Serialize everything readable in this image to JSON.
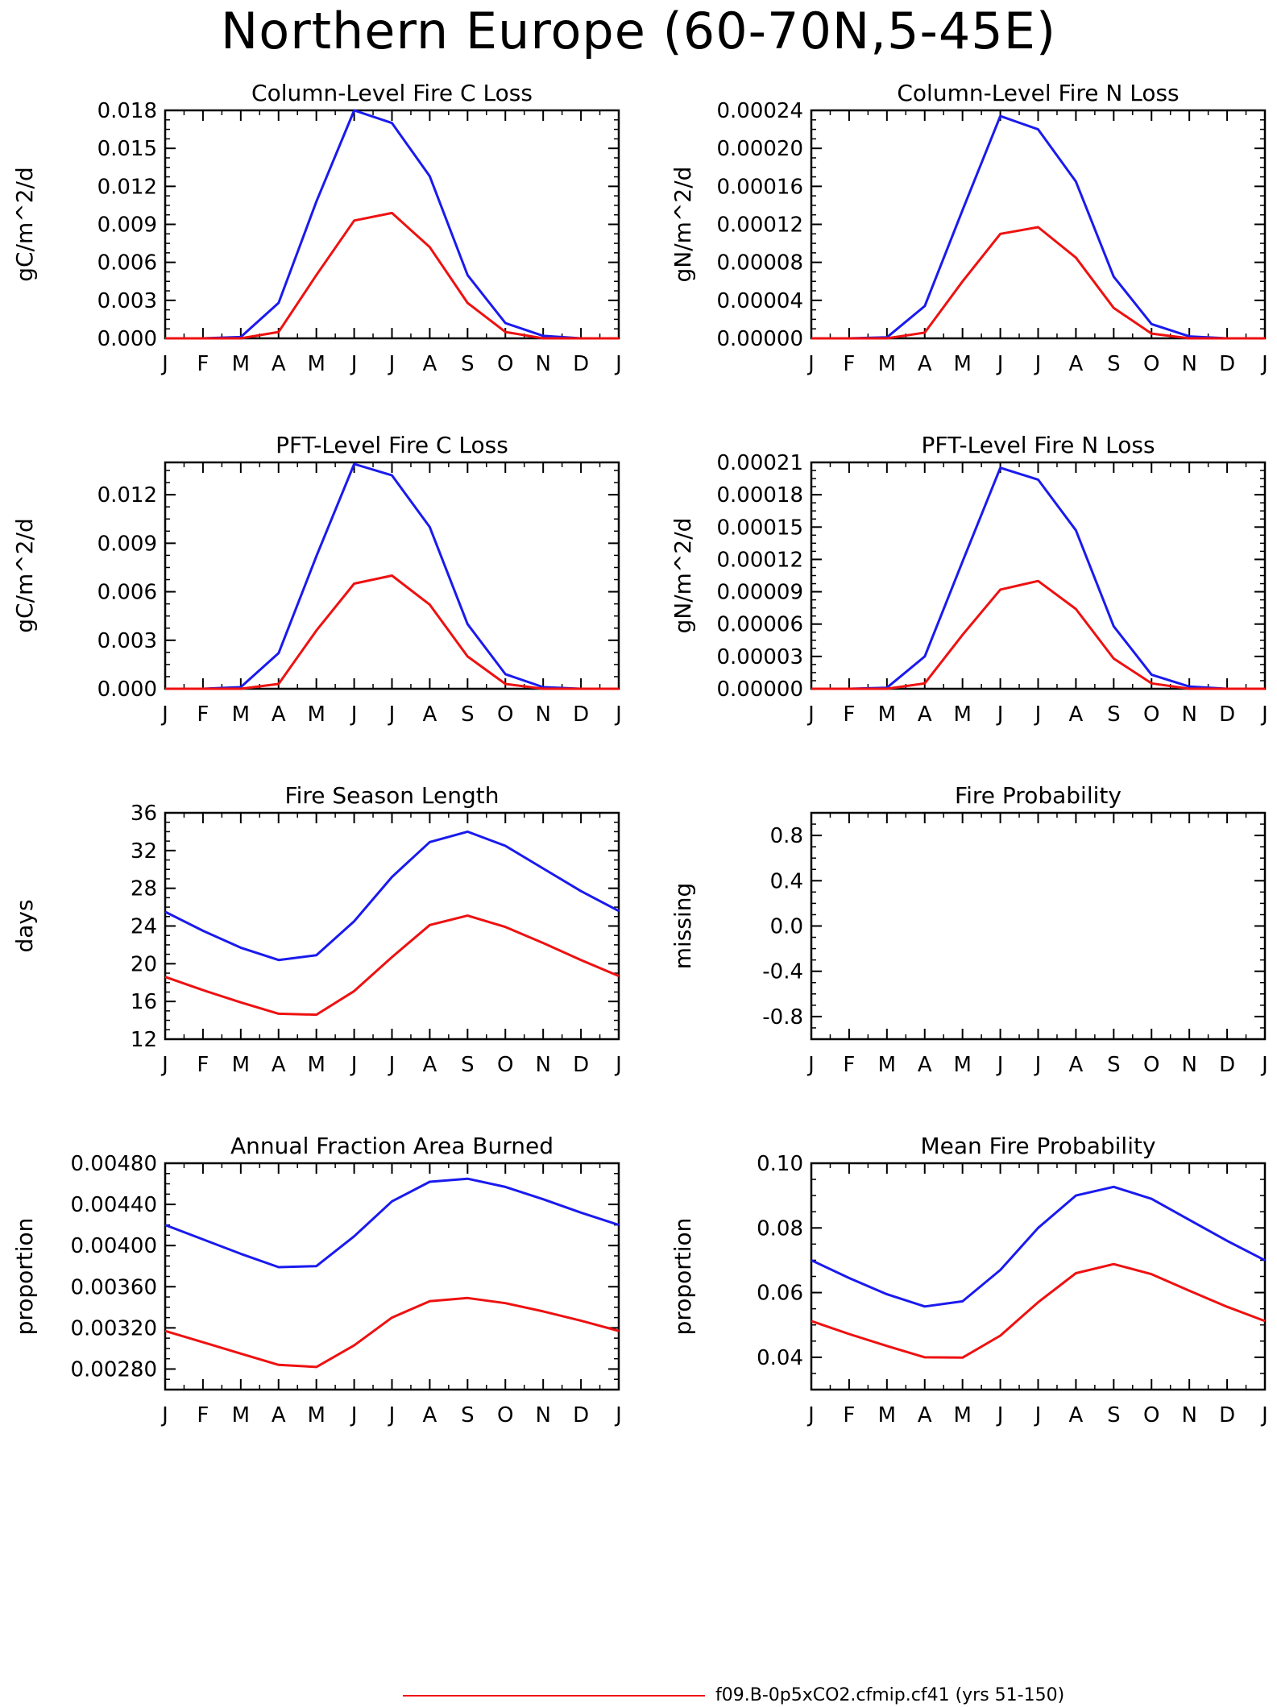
{
  "title": "Northern Europe (60-70N,5-45E)",
  "month_ticks": [
    "J",
    "F",
    "M",
    "A",
    "M",
    "J",
    "J",
    "A",
    "S",
    "O",
    "N",
    "D",
    "J"
  ],
  "colors": {
    "series_a": "#1a1aee",
    "series_b": "#ee1111"
  },
  "legend": [
    {
      "label": "f09.B-0p5xCO2.cfmip.cf41 (yrs 51-150)",
      "color": "#ee1111"
    }
  ],
  "chart_data": [
    {
      "type": "line",
      "title": "Column-Level Fire C Loss",
      "ylabel": "gC/m^2/d",
      "ylim": [
        0,
        0.018
      ],
      "yticks": [
        "0.000",
        "0.003",
        "0.006",
        "0.009",
        "0.012",
        "0.015",
        "0.018"
      ],
      "series": [
        {
          "color": "#1a1aee",
          "values": [
            0,
            0,
            0.0001,
            0.0028,
            0.0108,
            0.018,
            0.017,
            0.0128,
            0.005,
            0.0012,
            0.0002,
            0,
            0
          ]
        },
        {
          "color": "#ee1111",
          "values": [
            0,
            0,
            0,
            0.0005,
            0.005,
            0.0093,
            0.0099,
            0.0072,
            0.0028,
            0.0005,
            0,
            0,
            0
          ]
        }
      ]
    },
    {
      "type": "line",
      "title": "Column-Level Fire N Loss",
      "ylabel": "gN/m^2/d",
      "ylim": [
        0,
        0.00024
      ],
      "yticks": [
        "0.00000",
        "0.00004",
        "0.00008",
        "0.00012",
        "0.00016",
        "0.00020",
        "0.00024"
      ],
      "series": [
        {
          "color": "#1a1aee",
          "values": [
            0,
            0,
            1e-06,
            3.4e-05,
            0.000135,
            0.000234,
            0.00022,
            0.000165,
            6.5e-05,
            1.5e-05,
            2e-06,
            0,
            0
          ]
        },
        {
          "color": "#ee1111",
          "values": [
            0,
            0,
            0,
            6e-06,
            6e-05,
            0.00011,
            0.000117,
            8.5e-05,
            3.2e-05,
            5e-06,
            0,
            0,
            0
          ]
        }
      ]
    },
    {
      "type": "line",
      "title": "PFT-Level Fire C Loss",
      "ylabel": "gC/m^2/d",
      "ylim": [
        0,
        0.014
      ],
      "yticks": [
        "0.000",
        "0.003",
        "0.006",
        "0.009",
        "0.012"
      ],
      "ytick_values": [
        0,
        0.003,
        0.006,
        0.009,
        0.012
      ],
      "series": [
        {
          "color": "#1a1aee",
          "values": [
            0,
            0,
            0.0001,
            0.0022,
            0.0082,
            0.0139,
            0.0132,
            0.01,
            0.004,
            0.0009,
            0.0001,
            0,
            0
          ]
        },
        {
          "color": "#ee1111",
          "values": [
            0,
            0,
            0,
            0.0003,
            0.0036,
            0.0065,
            0.007,
            0.0052,
            0.002,
            0.0003,
            0,
            0,
            0
          ]
        }
      ]
    },
    {
      "type": "line",
      "title": "PFT-Level Fire N Loss",
      "ylabel": "gN/m^2/d",
      "ylim": [
        0,
        0.00021
      ],
      "yticks": [
        "0.00000",
        "0.00003",
        "0.00006",
        "0.00009",
        "0.00012",
        "0.00015",
        "0.00018",
        "0.00021"
      ],
      "series": [
        {
          "color": "#1a1aee",
          "values": [
            0,
            0,
            1e-06,
            3e-05,
            0.000118,
            0.000205,
            0.000194,
            0.000147,
            5.8e-05,
            1.3e-05,
            2e-06,
            0,
            0
          ]
        },
        {
          "color": "#ee1111",
          "values": [
            0,
            0,
            0,
            5e-06,
            5e-05,
            9.2e-05,
            0.0001,
            7.4e-05,
            2.8e-05,
            5e-06,
            0,
            0,
            0
          ]
        }
      ]
    },
    {
      "type": "line",
      "title": "Fire Season Length",
      "ylabel": "days",
      "ylim": [
        12,
        36
      ],
      "yticks": [
        "12",
        "16",
        "20",
        "24",
        "28",
        "32",
        "36"
      ],
      "series": [
        {
          "color": "#1a1aee",
          "values": [
            25.5,
            23.5,
            21.7,
            20.4,
            20.9,
            24.5,
            29.2,
            32.9,
            34.0,
            32.5,
            30.1,
            27.7,
            25.6
          ]
        },
        {
          "color": "#ee1111",
          "values": [
            18.6,
            17.2,
            15.9,
            14.7,
            14.6,
            17.1,
            20.7,
            24.1,
            25.1,
            23.9,
            22.2,
            20.4,
            18.7
          ]
        }
      ]
    },
    {
      "type": "line",
      "title": "Fire Probability",
      "ylabel": "missing",
      "ylim": [
        -1,
        1
      ],
      "yticks": [
        "-0.8",
        "-0.4",
        "0.0",
        "0.4",
        "0.8"
      ],
      "ytick_values": [
        -0.8,
        -0.4,
        0.0,
        0.4,
        0.8
      ],
      "series": []
    },
    {
      "type": "line",
      "title": "Annual Fraction Area Burned",
      "ylabel": "proportion",
      "ylim": [
        0.0026,
        0.0048
      ],
      "yticks": [
        "0.00280",
        "0.00320",
        "0.00360",
        "0.00400",
        "0.00440",
        "0.00480"
      ],
      "ytick_values": [
        0.0028,
        0.0032,
        0.0036,
        0.004,
        0.0044,
        0.0048
      ],
      "series": [
        {
          "color": "#1a1aee",
          "values": [
            0.0042,
            0.00406,
            0.00392,
            0.00379,
            0.0038,
            0.00409,
            0.00443,
            0.00462,
            0.00465,
            0.00457,
            0.00445,
            0.00432,
            0.0042
          ]
        },
        {
          "color": "#ee1111",
          "values": [
            0.00317,
            0.00306,
            0.00295,
            0.00284,
            0.00282,
            0.00303,
            0.0033,
            0.00346,
            0.00349,
            0.00344,
            0.00336,
            0.00327,
            0.00317
          ]
        }
      ]
    },
    {
      "type": "line",
      "title": "Mean Fire Probability",
      "ylabel": "proportion",
      "ylim": [
        0.03,
        0.1
      ],
      "yticks": [
        "0.04",
        "0.06",
        "0.08",
        "0.10"
      ],
      "ytick_values": [
        0.04,
        0.06,
        0.08,
        0.1
      ],
      "series": [
        {
          "color": "#1a1aee",
          "values": [
            0.07,
            0.0645,
            0.0595,
            0.0557,
            0.0573,
            0.067,
            0.08,
            0.09,
            0.0927,
            0.089,
            0.0825,
            0.076,
            0.07
          ]
        },
        {
          "color": "#ee1111",
          "values": [
            0.0512,
            0.0472,
            0.0435,
            0.04,
            0.0399,
            0.0467,
            0.057,
            0.066,
            0.0688,
            0.0657,
            0.0606,
            0.0556,
            0.0512
          ]
        }
      ]
    }
  ]
}
